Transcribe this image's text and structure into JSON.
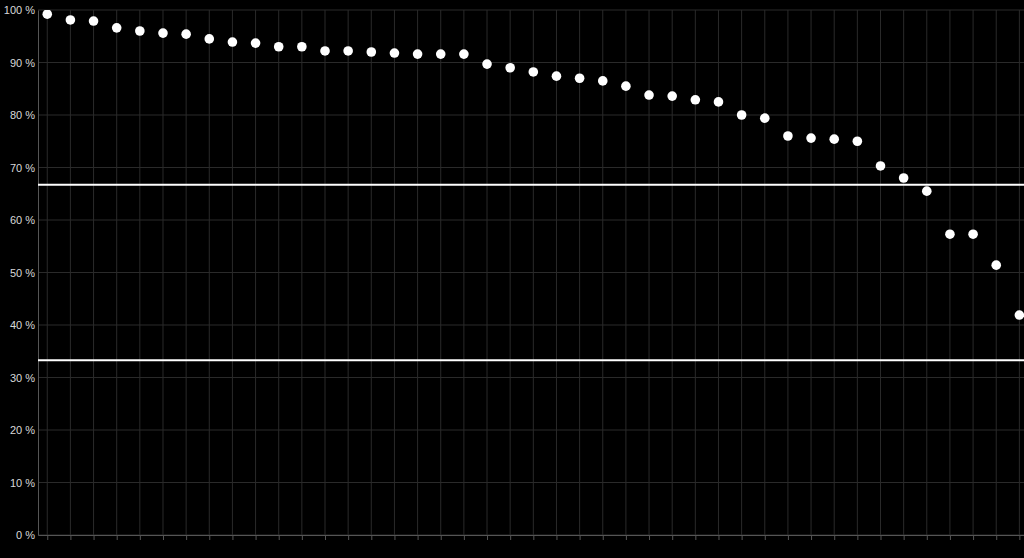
{
  "chart_data": {
    "type": "scatter",
    "x": [
      1,
      2,
      3,
      4,
      5,
      6,
      7,
      8,
      9,
      10,
      11,
      12,
      13,
      14,
      15,
      16,
      17,
      18,
      19,
      20,
      21,
      22,
      23,
      24,
      25,
      26,
      27,
      28,
      29,
      30,
      31,
      32,
      33,
      34,
      35,
      36,
      37,
      38,
      39,
      40,
      41,
      42,
      43
    ],
    "values": [
      99.2,
      98.1,
      97.9,
      96.6,
      96.0,
      95.6,
      95.4,
      94.5,
      93.9,
      93.7,
      93.0,
      93.0,
      92.2,
      92.2,
      92.0,
      91.8,
      91.6,
      91.6,
      91.6,
      89.7,
      89.0,
      88.2,
      87.4,
      87.0,
      86.5,
      85.5,
      83.8,
      83.6,
      82.9,
      82.5,
      80.0,
      79.4,
      76.0,
      75.6,
      75.4,
      75.0,
      70.3,
      68.0,
      65.5,
      57.3,
      57.3,
      51.4,
      41.9
    ],
    "color": "#ffffff",
    "marker": "circle",
    "xlim": [
      0.6,
      43.2
    ],
    "xticks": [
      1,
      2,
      3,
      4,
      5,
      6,
      7,
      8,
      9,
      10,
      11,
      12,
      13,
      14,
      15,
      16,
      17,
      18,
      19,
      20,
      21,
      22,
      23,
      24,
      25,
      26,
      27,
      28,
      29,
      30,
      31,
      32,
      33,
      34,
      35,
      36,
      37,
      38,
      39,
      40,
      41,
      42,
      43
    ],
    "ylim": [
      0,
      100
    ],
    "yticks": [
      {
        "value": 0,
        "label": "0 %"
      },
      {
        "value": 10,
        "label": "10 %"
      },
      {
        "value": 20,
        "label": "20 %"
      },
      {
        "value": 30,
        "label": "30 %"
      },
      {
        "value": 40,
        "label": "40 %"
      },
      {
        "value": 50,
        "label": "50 %"
      },
      {
        "value": 60,
        "label": "60 %"
      },
      {
        "value": 70,
        "label": "70 %"
      },
      {
        "value": 80,
        "label": "80 %"
      },
      {
        "value": 90,
        "label": "90 %"
      },
      {
        "value": 100,
        "label": "100 %"
      }
    ],
    "reference_lines": [
      66.7,
      33.3
    ],
    "grid": true,
    "tick_labels": "y"
  }
}
